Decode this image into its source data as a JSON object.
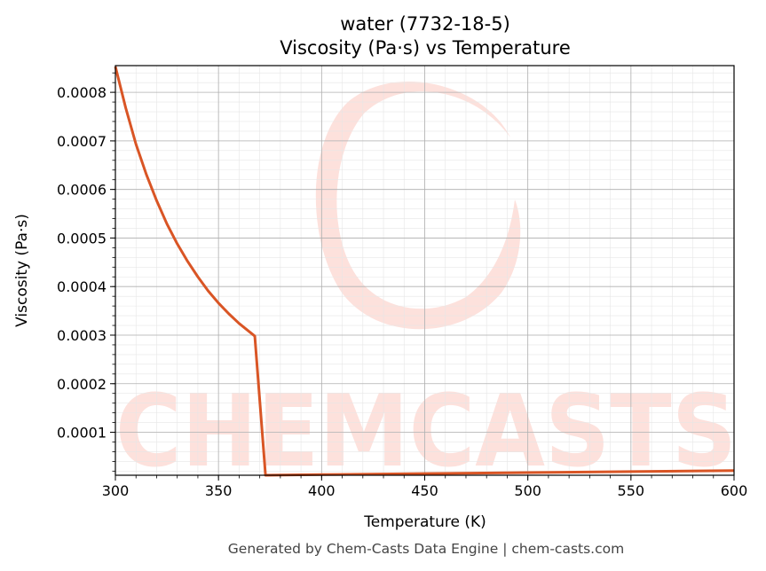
{
  "chart_data": {
    "type": "line",
    "title_line1": "water (7732-18-5)",
    "title_line2": "Viscosity (Pa·s) vs Temperature",
    "xlabel": "Temperature (K)",
    "ylabel": "Viscosity (Pa·s)",
    "xlim": [
      300,
      600
    ],
    "ylim": [
      1.15e-05,
      0.000855
    ],
    "x_ticks": [
      300,
      350,
      400,
      450,
      500,
      550,
      600
    ],
    "x_tick_labels": [
      "300",
      "350",
      "400",
      "450",
      "500",
      "550",
      "600"
    ],
    "y_ticks": [
      0.0001,
      0.0002,
      0.0003,
      0.0004,
      0.0005,
      0.0006,
      0.0007,
      0.0008
    ],
    "y_tick_labels": [
      "0.0001",
      "0.0002",
      "0.0003",
      "0.0004",
      "0.0005",
      "0.0006",
      "0.0007",
      "0.0008"
    ],
    "grid": true,
    "series": [
      {
        "color": "#d95525",
        "x": [
          300,
          305,
          310,
          315,
          320,
          325,
          330,
          335,
          340,
          345,
          350,
          355,
          360,
          365,
          367.6,
          372.8,
          400,
          450,
          500,
          550,
          600
        ],
        "y": [
          0.000853,
          0.000768,
          0.000693,
          0.000631,
          0.000577,
          0.000529,
          0.000488,
          0.000452,
          0.00042,
          0.000391,
          0.000366,
          0.000344,
          0.000324,
          0.000307,
          0.000298,
          1.15e-05,
          1.28e-05,
          1.49e-05,
          1.7e-05,
          1.91e-05,
          2.12e-05
        ]
      }
    ]
  },
  "watermark": {
    "text": "CHEMCASTS",
    "color": "#fde1dc"
  },
  "footer": "Generated by Chem-Casts Data Engine | chem-casts.com"
}
